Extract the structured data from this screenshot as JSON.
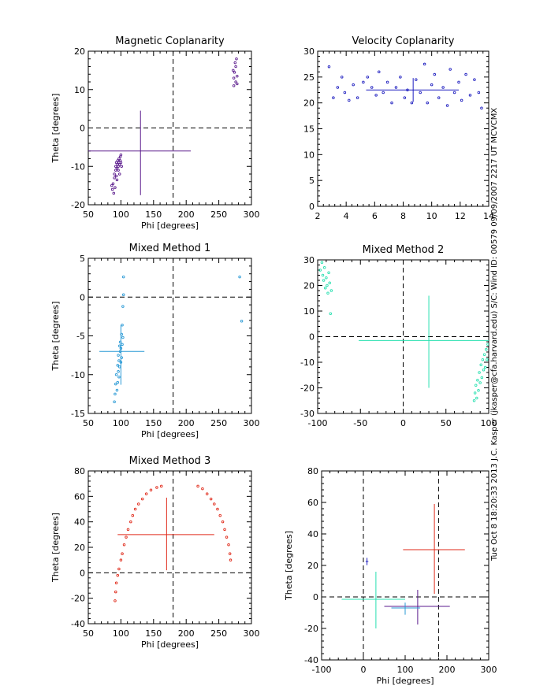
{
  "side_label": "Tue Oct 8 18:20:33 2013 J.C. Kasper (jkasper@cfa.harvard.edu) S/C: Wind ID: 00579 09/09/2007 2217 UT MCVCMX",
  "colors": {
    "magnetic": "#5a1a8c",
    "velocity": "#2020c0",
    "mixed1": "#2a9ad6",
    "mixed2": "#28e0b0",
    "mixed3": "#e02a1a"
  },
  "chart_data": [
    {
      "id": "magnetic",
      "type": "scatter",
      "title": "Magnetic Coplanarity",
      "xlabel": "Phi [degrees]",
      "ylabel": "Theta [degrees]",
      "xlim": [
        50,
        300
      ],
      "ylim": [
        -20,
        20
      ],
      "xticks": [
        50,
        100,
        150,
        200,
        250,
        300
      ],
      "yticks": [
        -20,
        -10,
        0,
        10,
        20
      ],
      "color": "#5a1a8c",
      "dashed_x": 180,
      "dashed_y": 0,
      "cross": {
        "x": 130,
        "y": -6,
        "x_range": [
          50,
          207
        ],
        "y_range": [
          -17.5,
          4.5
        ]
      },
      "points": [
        [
          86,
          -15
        ],
        [
          87,
          -16
        ],
        [
          88,
          -14.5
        ],
        [
          89,
          -17
        ],
        [
          90,
          -13
        ],
        [
          90,
          -12
        ],
        [
          91,
          -15.5
        ],
        [
          92,
          -11
        ],
        [
          92,
          -10
        ],
        [
          93,
          -12.5
        ],
        [
          93,
          -9
        ],
        [
          94,
          -10.5
        ],
        [
          94,
          -13.5
        ],
        [
          95,
          -9.5
        ],
        [
          95,
          -8.5
        ],
        [
          96,
          -11
        ],
        [
          96,
          -10
        ],
        [
          97,
          -9
        ],
        [
          97,
          -8
        ],
        [
          98,
          -12
        ],
        [
          98,
          -9.5
        ],
        [
          99,
          -8.5
        ],
        [
          99,
          -7.5
        ],
        [
          100,
          -7
        ],
        [
          100,
          -9
        ],
        [
          101,
          -10
        ],
        [
          272,
          15
        ],
        [
          273,
          11
        ],
        [
          273,
          13
        ],
        [
          274,
          14.5
        ],
        [
          275,
          17
        ],
        [
          276,
          12
        ],
        [
          276,
          16
        ],
        [
          277,
          18
        ],
        [
          278,
          11.5
        ],
        [
          278,
          13.5
        ]
      ]
    },
    {
      "id": "velocity",
      "type": "scatter",
      "title": "Velocity Coplanarity",
      "xlabel": "",
      "ylabel": "",
      "xlim": [
        2,
        14
      ],
      "ylim": [
        0,
        30
      ],
      "xticks": [
        2,
        4,
        6,
        8,
        10,
        12,
        14
      ],
      "yticks": [
        0,
        5,
        10,
        15,
        20,
        25,
        30
      ],
      "color": "#2020c0",
      "cross": {
        "x": 8.7,
        "y": 22.5,
        "x_range": [
          5.4,
          11.9
        ],
        "y_range": [
          20.2,
          24.8
        ]
      },
      "points": [
        [
          2.8,
          27
        ],
        [
          3.1,
          21
        ],
        [
          3.4,
          23
        ],
        [
          3.7,
          25
        ],
        [
          3.9,
          22
        ],
        [
          4.2,
          20.5
        ],
        [
          4.5,
          23.5
        ],
        [
          4.8,
          21
        ],
        [
          5.2,
          24
        ],
        [
          5.5,
          25
        ],
        [
          5.8,
          23
        ],
        [
          6.1,
          21.5
        ],
        [
          6.3,
          26
        ],
        [
          6.6,
          22
        ],
        [
          6.9,
          24
        ],
        [
          7.2,
          20
        ],
        [
          7.5,
          23
        ],
        [
          7.8,
          25
        ],
        [
          8.1,
          21
        ],
        [
          8.3,
          22.5
        ],
        [
          8.6,
          20
        ],
        [
          8.9,
          24.5
        ],
        [
          9.2,
          22
        ],
        [
          9.5,
          27.5
        ],
        [
          9.7,
          20
        ],
        [
          10.0,
          23.5
        ],
        [
          10.2,
          25.5
        ],
        [
          10.5,
          21
        ],
        [
          10.8,
          23
        ],
        [
          11.1,
          19.5
        ],
        [
          11.3,
          26.5
        ],
        [
          11.6,
          22
        ],
        [
          11.9,
          24
        ],
        [
          12.1,
          20.5
        ],
        [
          12.4,
          25.5
        ],
        [
          12.7,
          21.5
        ],
        [
          13.0,
          24.5
        ],
        [
          13.3,
          22
        ],
        [
          13.5,
          19
        ]
      ]
    },
    {
      "id": "mixed1",
      "type": "scatter",
      "title": "Mixed Method 1",
      "xlabel": "Phi [degrees]",
      "ylabel": "Theta [degrees]",
      "xlim": [
        50,
        300
      ],
      "ylim": [
        -15,
        5
      ],
      "xticks": [
        50,
        100,
        150,
        200,
        250,
        300
      ],
      "yticks": [
        -15,
        -10,
        -5,
        0,
        5
      ],
      "color": "#2a9ad6",
      "dashed_x": 180,
      "dashed_y": 0,
      "cross": {
        "x": 100,
        "y": -7,
        "x_range": [
          67,
          136
        ],
        "y_range": [
          -11.3,
          -3.6
        ]
      },
      "points": [
        [
          90,
          -13.5
        ],
        [
          91,
          -12.5
        ],
        [
          92,
          -11.2
        ],
        [
          93,
          -10
        ],
        [
          94,
          -12
        ],
        [
          95,
          -8.8
        ],
        [
          95,
          -11
        ],
        [
          96,
          -9.6
        ],
        [
          96,
          -7.5
        ],
        [
          97,
          -10.3
        ],
        [
          97,
          -8.2
        ],
        [
          98,
          -6.3
        ],
        [
          98,
          -9
        ],
        [
          99,
          -7
        ],
        [
          99,
          -5.8
        ],
        [
          100,
          -8.4
        ],
        [
          100,
          -6.6
        ],
        [
          101,
          -4.8
        ],
        [
          101,
          -7.8
        ],
        [
          102,
          -3.6
        ],
        [
          102,
          -6.1
        ],
        [
          103,
          -5.2
        ],
        [
          103,
          -1.2
        ],
        [
          104,
          0.3
        ],
        [
          104,
          2.6
        ],
        [
          282,
          2.6
        ],
        [
          285,
          -3.1
        ]
      ]
    },
    {
      "id": "mixed2",
      "type": "scatter",
      "title": "Mixed Method 2",
      "xlabel": "",
      "ylabel": "",
      "xlim": [
        -100,
        100
      ],
      "ylim": [
        -30,
        30
      ],
      "xticks": [
        -100,
        -50,
        0,
        50,
        100
      ],
      "yticks": [
        -30,
        -20,
        -10,
        0,
        10,
        20,
        30
      ],
      "color": "#28e0b0",
      "dashed_x": 0,
      "dashed_y": 0,
      "cross": {
        "x": 30,
        "y": -1.5,
        "x_range": [
          -52,
          100
        ],
        "y_range": [
          -20,
          16
        ]
      },
      "points": [
        [
          -97,
          26
        ],
        [
          -95,
          29
        ],
        [
          -94,
          24
        ],
        [
          -93,
          22
        ],
        [
          -92,
          27
        ],
        [
          -91,
          19
        ],
        [
          -90,
          23
        ],
        [
          -89,
          20
        ],
        [
          -88,
          17
        ],
        [
          -87,
          25
        ],
        [
          -86,
          21
        ],
        [
          -85,
          9
        ],
        [
          -84,
          18
        ],
        [
          83,
          -25
        ],
        [
          84,
          -22
        ],
        [
          85,
          -19
        ],
        [
          86,
          -24
        ],
        [
          87,
          -17
        ],
        [
          88,
          -21
        ],
        [
          89,
          -14
        ],
        [
          90,
          -18
        ],
        [
          91,
          -11
        ],
        [
          92,
          -16
        ],
        [
          93,
          -9
        ],
        [
          94,
          -13
        ],
        [
          95,
          -7
        ],
        [
          96,
          -12
        ],
        [
          97,
          -5
        ],
        [
          98,
          -9
        ],
        [
          99,
          -3
        ]
      ]
    },
    {
      "id": "mixed3",
      "type": "scatter",
      "title": "Mixed Method 3",
      "xlabel": "Phi [degrees]",
      "ylabel": "Theta [degrees]",
      "xlim": [
        50,
        300
      ],
      "ylim": [
        -40,
        80
      ],
      "xticks": [
        50,
        100,
        150,
        200,
        250,
        300
      ],
      "yticks": [
        -40,
        -20,
        0,
        20,
        40,
        60,
        80
      ],
      "color": "#e02a1a",
      "dashed_x": 180,
      "dashed_y": 0,
      "cross": {
        "x": 170,
        "y": 30,
        "x_range": [
          95,
          243
        ],
        "y_range": [
          2,
          59
        ]
      },
      "points": [
        [
          91,
          -22
        ],
        [
          92,
          -15
        ],
        [
          93,
          -8
        ],
        [
          95,
          -2
        ],
        [
          97,
          3
        ],
        [
          100,
          10
        ],
        [
          102,
          15
        ],
        [
          105,
          22
        ],
        [
          108,
          28
        ],
        [
          111,
          34
        ],
        [
          115,
          40
        ],
        [
          118,
          45
        ],
        [
          122,
          50
        ],
        [
          127,
          54
        ],
        [
          133,
          58
        ],
        [
          139,
          62
        ],
        [
          146,
          65
        ],
        [
          155,
          67
        ],
        [
          162,
          68
        ],
        [
          218,
          68
        ],
        [
          225,
          66
        ],
        [
          232,
          62
        ],
        [
          238,
          58
        ],
        [
          243,
          54
        ],
        [
          248,
          50
        ],
        [
          252,
          45
        ],
        [
          256,
          40
        ],
        [
          259,
          34
        ],
        [
          262,
          28
        ],
        [
          265,
          22
        ],
        [
          267,
          15
        ],
        [
          268,
          10
        ]
      ]
    },
    {
      "id": "combined",
      "type": "scatter",
      "title": "",
      "xlabel": "Phi [degrees]",
      "ylabel": "Theta [degrees]",
      "xlim": [
        -100,
        300
      ],
      "ylim": [
        -40,
        80
      ],
      "xticks": [
        -100,
        0,
        100,
        200,
        300
      ],
      "yticks": [
        -40,
        -20,
        0,
        20,
        40,
        60,
        80
      ],
      "dashed_x": [
        0,
        180
      ],
      "dashed_y": 0,
      "crosses": [
        {
          "x": 8.7,
          "y": 22.5,
          "x_range": [
            5.4,
            11.9
          ],
          "y_range": [
            20.2,
            24.8
          ],
          "color": "#2020c0"
        },
        {
          "x": 130,
          "y": -6,
          "x_range": [
            50,
            207
          ],
          "y_range": [
            -17.5,
            4.5
          ],
          "color": "#5a1a8c"
        },
        {
          "x": 100,
          "y": -7,
          "x_range": [
            67,
            136
          ],
          "y_range": [
            -11.3,
            -3.6
          ],
          "color": "#2a9ad6"
        },
        {
          "x": 30,
          "y": -1.5,
          "x_range": [
            -52,
            100
          ],
          "y_range": [
            -20,
            16
          ],
          "color": "#28e0b0"
        },
        {
          "x": 170,
          "y": 30,
          "x_range": [
            95,
            243
          ],
          "y_range": [
            2,
            59
          ],
          "color": "#e02a1a"
        }
      ]
    }
  ]
}
